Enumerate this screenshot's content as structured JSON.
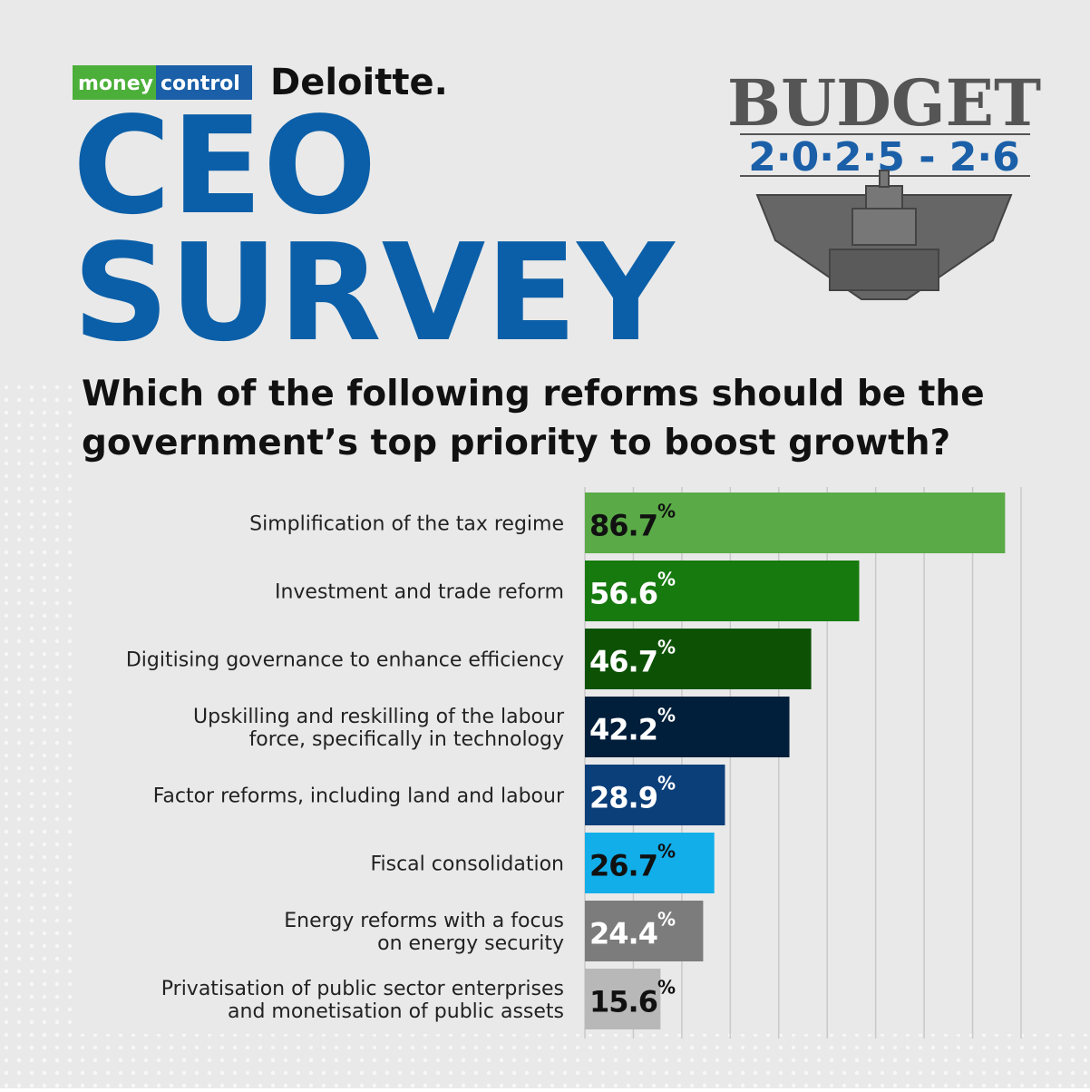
{
  "brands": {
    "moneycontrol_left": "money",
    "moneycontrol_right": "control",
    "deloitte": "Deloitte."
  },
  "headline": [
    "CEO",
    "SURVEY"
  ],
  "budget": {
    "title": "BUDGET",
    "years": "2·0·2·5 - 2·6"
  },
  "chart_data": {
    "type": "hbar",
    "title": [
      "Which of the following reforms should be the",
      "government’s top priority to boost growth?"
    ],
    "categories": [
      [
        "Simplification of the tax regime"
      ],
      [
        "Investment and trade reform"
      ],
      [
        "Digitising governance to enhance efficiency"
      ],
      [
        "Upskilling and reskilling of the labour",
        "force, specifically in technology"
      ],
      [
        "Factor reforms, including land and labour"
      ],
      [
        "Fiscal consolidation"
      ],
      [
        "Energy reforms with a focus",
        "on energy security"
      ],
      [
        "Privatisation of public sector enterprises",
        "and monetisation of public assets"
      ]
    ],
    "values": [
      86.7,
      56.6,
      46.7,
      42.2,
      28.9,
      26.7,
      24.4,
      15.6
    ],
    "unit": "%",
    "colors": [
      "#5aab47",
      "#177a0f",
      "#0d5204",
      "#011f3a",
      "#0b3f7a",
      "#12aeea",
      "#7c7c7c",
      "#b8b8b8"
    ],
    "label_colors": [
      "#111111",
      "#ffffff",
      "#ffffff",
      "#ffffff",
      "#ffffff",
      "#111111",
      "#ffffff",
      "#111111"
    ],
    "xlim": [
      0,
      90
    ],
    "xticks": [
      0,
      10,
      20,
      30,
      40,
      50,
      60,
      70,
      80,
      90
    ],
    "grid": true
  }
}
